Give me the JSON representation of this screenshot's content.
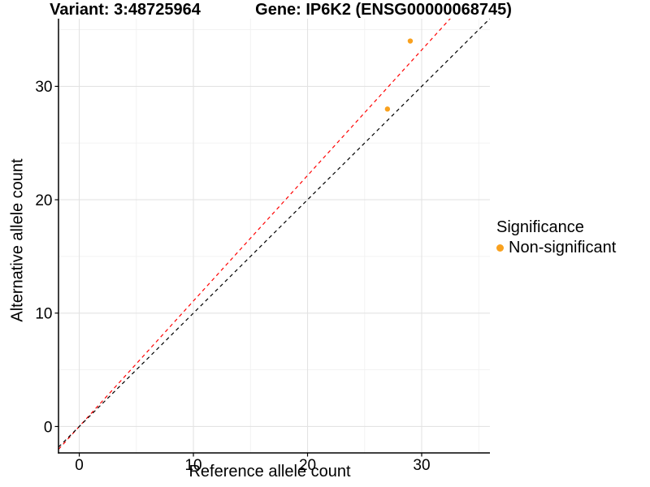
{
  "chart_data": {
    "type": "scatter",
    "titles": {
      "left": "Variant: 3:48725964",
      "right": "Gene: IP6K2 (ENSG00000068745)"
    },
    "xlabel": "Reference allele count",
    "ylabel": "Alternative allele count",
    "xlim": [
      -1.82,
      35.98
    ],
    "ylim": [
      -2.33,
      35.97
    ],
    "x_major_ticks": [
      0,
      10,
      20,
      30
    ],
    "y_major_ticks": [
      0,
      10,
      20,
      30
    ],
    "x_minor_ticks": [
      5,
      15,
      25,
      35
    ],
    "y_minor_ticks": [
      5,
      15,
      25,
      35
    ],
    "grid": true,
    "points": [
      {
        "x": 27,
        "y": 28,
        "series": "Non-significant"
      },
      {
        "x": 29,
        "y": 34,
        "series": "Non-significant"
      }
    ],
    "point_color": "#F9A11E",
    "point_radius": 3.2,
    "lines": [
      {
        "name": "allelic-ratio-line",
        "slope": 1.107,
        "intercept": 0,
        "color": "#FF0000",
        "style": "dashed"
      },
      {
        "name": "identity-line",
        "slope": 1.0,
        "intercept": 0,
        "color": "#000000",
        "style": "dashed"
      }
    ],
    "legend": {
      "title": "Significance",
      "position": "right",
      "items": [
        {
          "label": "Non-significant",
          "color": "#F9A11E"
        }
      ]
    },
    "colors": {
      "background": "#FFFFFF",
      "grid_major": "#E3E3E3",
      "grid_minor": "#F1F1F1",
      "axis": "#000000",
      "text": "#000000"
    }
  }
}
